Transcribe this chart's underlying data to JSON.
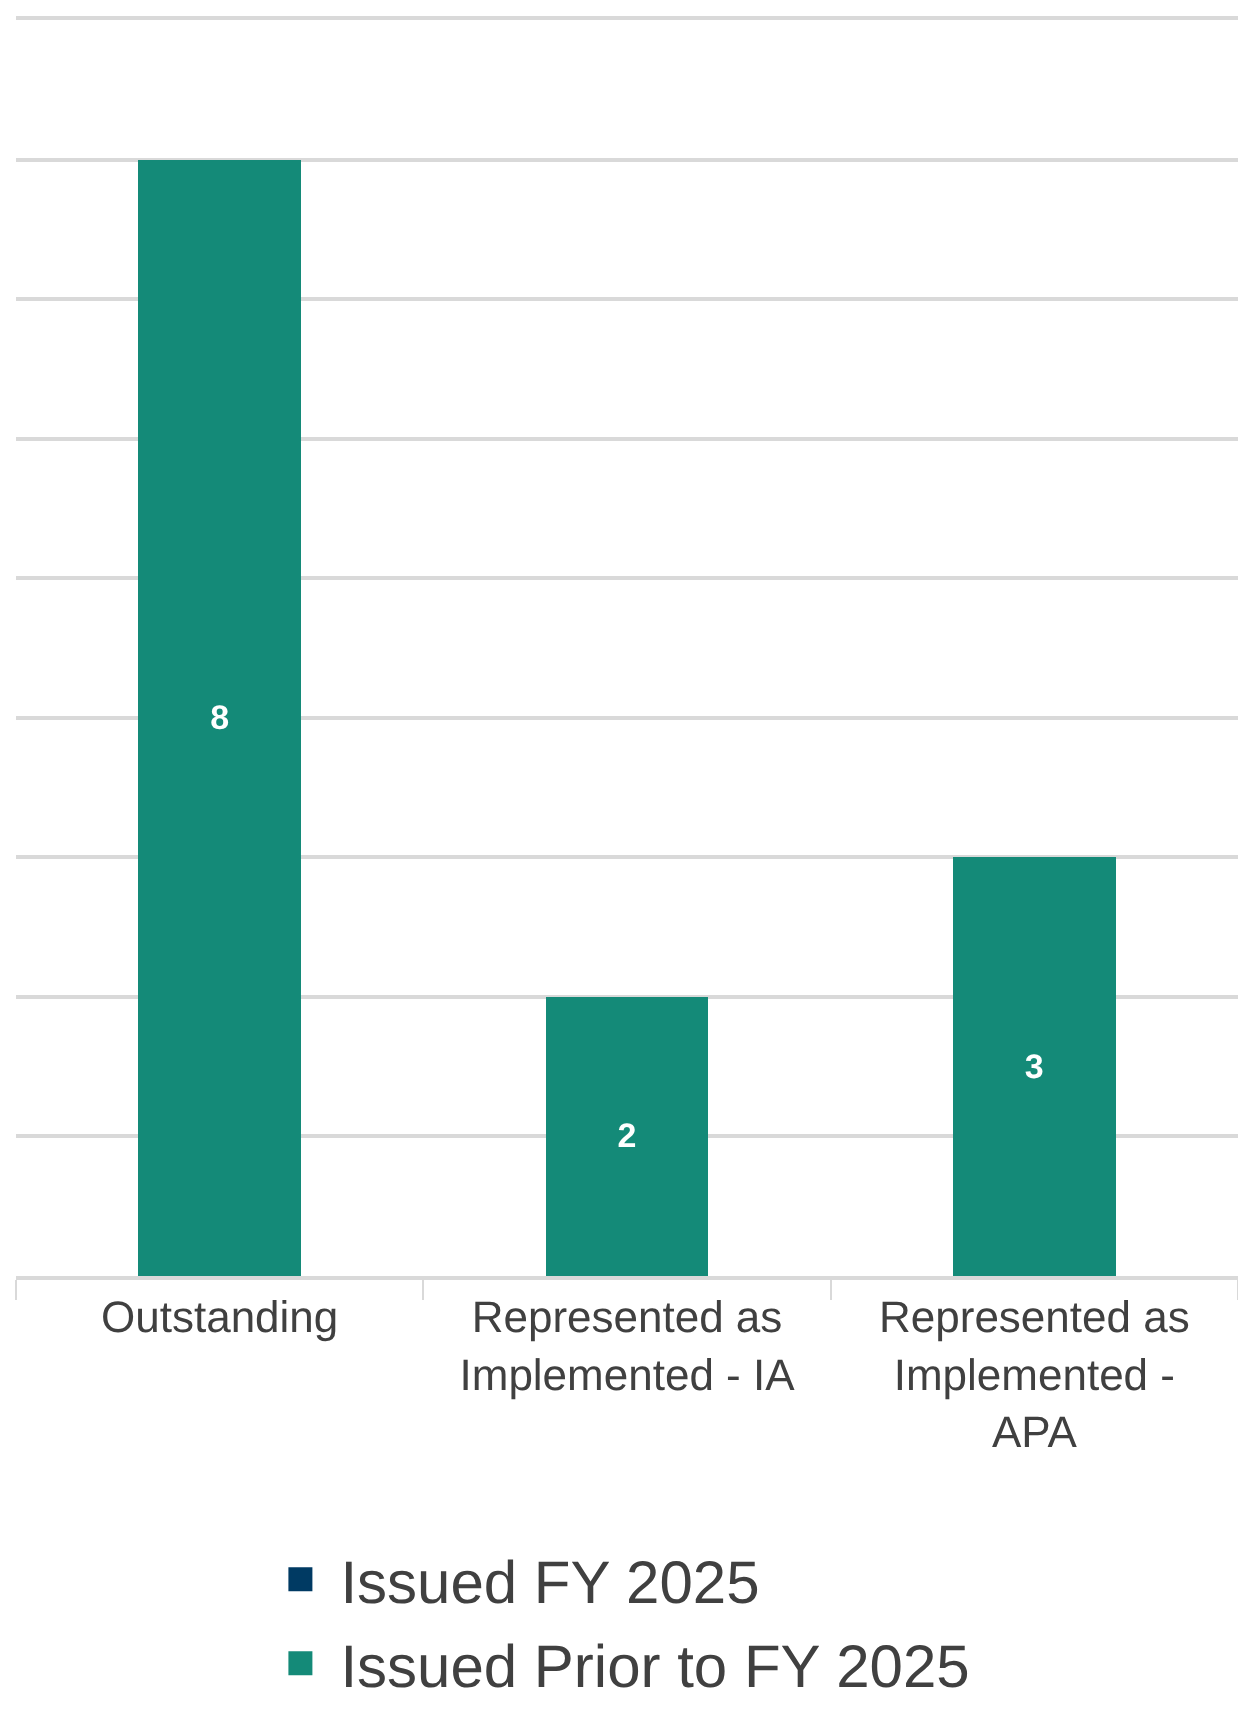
{
  "chart_data": {
    "type": "bar",
    "stacked": true,
    "categories": [
      "Outstanding",
      "Represented as Implemented - IA",
      "Represented as Implemented - APA"
    ],
    "series": [
      {
        "name": "Issued FY 2025",
        "color": "#003a63",
        "values": [
          null,
          null,
          null
        ]
      },
      {
        "name": "Issued Prior to FY 2025",
        "color": "#148a78",
        "values": [
          8,
          2,
          3
        ],
        "value_labels": [
          "8",
          "2",
          "3"
        ]
      }
    ],
    "ylim": [
      0,
      9
    ],
    "yticks": [
      {
        "value": 0,
        "label": null
      },
      {
        "value": 1,
        "label": null
      },
      {
        "value": 2,
        "label": null
      },
      {
        "value": 3,
        "label": null
      },
      {
        "value": 4,
        "label": null
      },
      {
        "value": 5,
        "label": null
      },
      {
        "value": 6,
        "label": null
      },
      {
        "value": 7,
        "label": null
      },
      {
        "value": 8,
        "label": null
      },
      {
        "value": 9,
        "label": null
      }
    ],
    "tick_labels": "x",
    "grid": "y",
    "legend": "bottom"
  }
}
